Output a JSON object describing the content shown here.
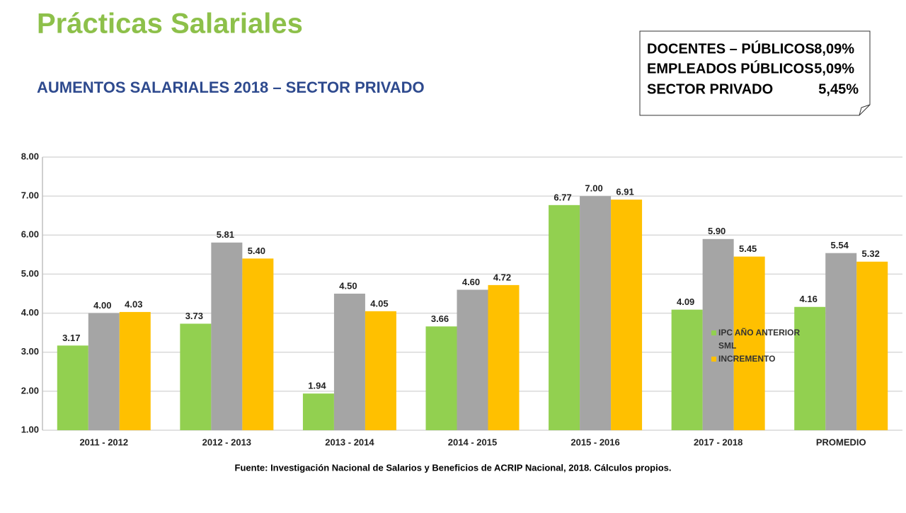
{
  "header": {
    "title": "Prácticas Salariales",
    "subtitle": "AUMENTOS SALARIALES 2018 – SECTOR PRIVADO"
  },
  "note": [
    {
      "label": "DOCENTES – PÚBLICOS",
      "value": "8,09%"
    },
    {
      "label": "EMPLEADOS PÚBLICOS",
      "value": "5,09%"
    },
    {
      "label": "SECTOR PRIVADO",
      "value": "5,45%"
    }
  ],
  "source": "Fuente: Investigación Nacional de Salarios y Beneficios de ACRIP Nacional, 2018. Cálculos propios.",
  "chart_data": {
    "type": "bar",
    "categories": [
      "2011 - 2012",
      "2012 - 2013",
      "2013 - 2014",
      "2014 - 2015",
      "2015 - 2016",
      "2017 - 2018",
      "PROMEDIO"
    ],
    "series": [
      {
        "name": "IPC AÑO ANTERIOR",
        "color": "#92d050",
        "values": [
          3.17,
          3.73,
          1.94,
          3.66,
          6.77,
          4.09,
          4.16
        ],
        "value_labels": [
          "3.17",
          "3.73",
          "1.94",
          "3.66",
          "6.77",
          "4.09",
          "4.16"
        ]
      },
      {
        "name": "SML",
        "color": "#a5a5a5",
        "values": [
          4.0,
          5.81,
          4.5,
          4.6,
          7.0,
          5.9,
          5.54
        ],
        "value_labels": [
          "4.00",
          "5.81",
          "4.50",
          "4.60",
          "7.00",
          "5.90",
          "5.54"
        ]
      },
      {
        "name": "INCREMENTO",
        "color": "#ffc000",
        "values": [
          4.03,
          5.4,
          4.05,
          4.72,
          6.91,
          5.45,
          5.32
        ],
        "value_labels": [
          "4.03",
          "5.40",
          "4.05",
          "4.72",
          "6.91",
          "5.45",
          "5.32"
        ]
      }
    ],
    "ylim": [
      1,
      8
    ],
    "yticks": [
      {
        "value": 1,
        "label": "1.00"
      },
      {
        "value": 2,
        "label": "2.00"
      },
      {
        "value": 3,
        "label": "3.00"
      },
      {
        "value": 4,
        "label": "4.00"
      },
      {
        "value": 5,
        "label": "5.00"
      },
      {
        "value": 6,
        "label": "6.00"
      },
      {
        "value": 7,
        "label": "7.00"
      },
      {
        "value": 8,
        "label": "8.00"
      }
    ],
    "grid": true
  }
}
